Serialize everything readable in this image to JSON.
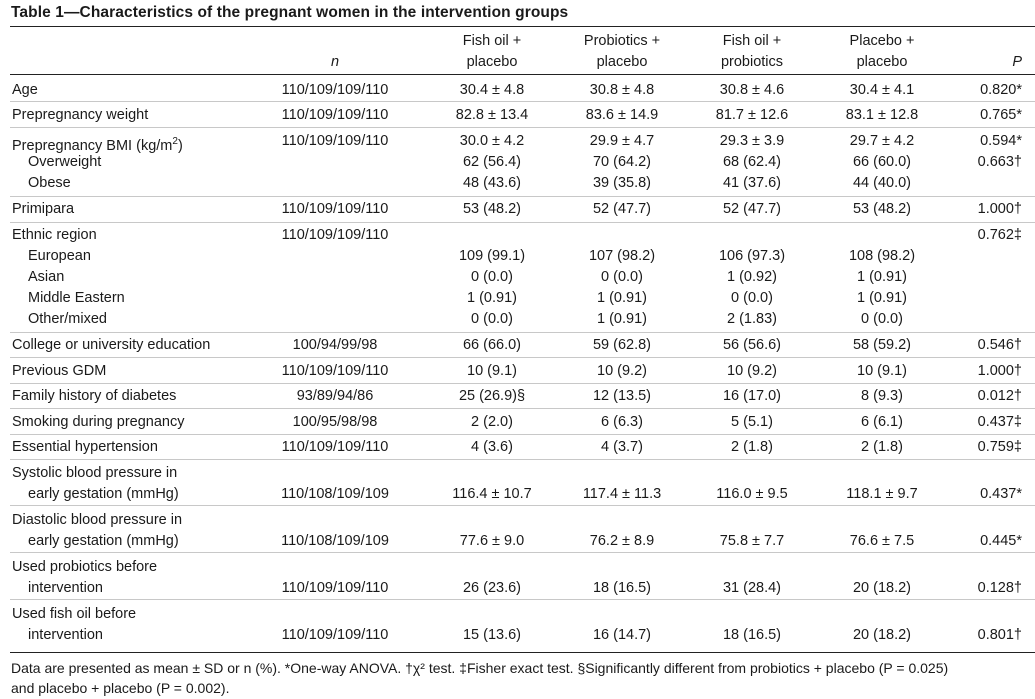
{
  "table": {
    "title": "Table 1—Characteristics of the pregnant women in the intervention groups",
    "headers": {
      "n": "n",
      "fish_oil_line1": "Fish oil +",
      "fish_oil_line2": "placebo",
      "probiotics_line1": "Probiotics +",
      "probiotics_line2": "placebo",
      "fish_probiotics_line1": "Fish oil +",
      "fish_probiotics_line2": "probiotics",
      "placebo_line1": "Placebo +",
      "placebo_line2": "placebo",
      "p": "P"
    },
    "rows": [
      {
        "label": "Age",
        "n": "110/109/109/110",
        "fo": "30.4 ± 4.8",
        "pr": "30.8 ± 4.8",
        "fp": "30.8 ± 4.6",
        "pl": "30.4 ± 4.1",
        "p": "0.820*"
      },
      {
        "label": "Prepregnancy weight",
        "n": "110/109/109/110",
        "fo": "82.8 ± 13.4",
        "pr": "83.6 ± 14.9",
        "fp": "81.7 ± 12.6",
        "pl": "83.1 ± 12.8",
        "p": "0.765*"
      },
      {
        "label": "Prepregnancy BMI (kg/m",
        "label_sup": "2",
        "label_end": ")",
        "n": "110/109/109/110",
        "fo": "30.0 ± 4.2",
        "pr": "29.9 ± 4.7",
        "fp": "29.3 ± 3.9",
        "pl": "29.7 ± 4.2",
        "p": "0.594*"
      },
      {
        "label": "Overweight",
        "n": "",
        "fo": "62 (56.4)",
        "pr": "70 (64.2)",
        "fp": "68 (62.4)",
        "pl": "66 (60.0)",
        "p": "0.663†"
      },
      {
        "label": "Obese",
        "n": "",
        "fo": "48 (43.6)",
        "pr": "39 (35.8)",
        "fp": "41 (37.6)",
        "pl": "44 (40.0)",
        "p": ""
      },
      {
        "label": "Primipara",
        "n": "110/109/109/110",
        "fo": "53 (48.2)",
        "pr": "52 (47.7)",
        "fp": "52 (47.7)",
        "pl": "53 (48.2)",
        "p": "1.000†"
      },
      {
        "label": "Ethnic region",
        "n": "110/109/109/110",
        "fo": "",
        "pr": "",
        "fp": "",
        "pl": "",
        "p": "0.762‡"
      },
      {
        "label": "European",
        "n": "",
        "fo": "109 (99.1)",
        "pr": "107 (98.2)",
        "fp": "106 (97.3)",
        "pl": "108 (98.2)",
        "p": ""
      },
      {
        "label": "Asian",
        "n": "",
        "fo": "0 (0.0)",
        "pr": "0 (0.0)",
        "fp": "1 (0.92)",
        "pl": "1 (0.91)",
        "p": ""
      },
      {
        "label": "Middle Eastern",
        "n": "",
        "fo": "1 (0.91)",
        "pr": "1 (0.91)",
        "fp": "0 (0.0)",
        "pl": "1 (0.91)",
        "p": ""
      },
      {
        "label": "Other/mixed",
        "n": "",
        "fo": "0 (0.0)",
        "pr": "1 (0.91)",
        "fp": "2 (1.83)",
        "pl": "0 (0.0)",
        "p": ""
      },
      {
        "label": "College or university education",
        "n": "100/94/99/98",
        "fo": "66 (66.0)",
        "pr": "59 (62.8)",
        "fp": "56 (56.6)",
        "pl": "58 (59.2)",
        "p": "0.546†"
      },
      {
        "label": "Previous GDM",
        "n": "110/109/109/110",
        "fo": "10 (9.1)",
        "pr": "10 (9.2)",
        "fp": "10 (9.2)",
        "pl": "10 (9.1)",
        "p": "1.000†"
      },
      {
        "label": "Family history of diabetes",
        "n": "93/89/94/86",
        "fo": "25 (26.9)§",
        "pr": "12 (13.5)",
        "fp": "16 (17.0)",
        "pl": "8 (9.3)",
        "p": "0.012†"
      },
      {
        "label": "Smoking during pregnancy",
        "n": "100/95/98/98",
        "fo": "2 (2.0)",
        "pr": "6 (6.3)",
        "fp": "5 (5.1)",
        "pl": "6 (6.1)",
        "p": "0.437‡"
      },
      {
        "label": "Essential hypertension",
        "n": "110/109/109/110",
        "fo": "4 (3.6)",
        "pr": "4 (3.7)",
        "fp": "2 (1.8)",
        "pl": "2 (1.8)",
        "p": "0.759‡"
      },
      {
        "label": "Systolic blood pressure in",
        "n": "",
        "fo": "",
        "pr": "",
        "fp": "",
        "pl": "",
        "p": ""
      },
      {
        "label": "early gestation (mmHg)",
        "n": "110/108/109/109",
        "fo": "116.4 ± 10.7",
        "pr": "117.4 ± 11.3",
        "fp": "116.0 ± 9.5",
        "pl": "118.1 ± 9.7",
        "p": "0.437*"
      },
      {
        "label": "Diastolic blood pressure in",
        "n": "",
        "fo": "",
        "pr": "",
        "fp": "",
        "pl": "",
        "p": ""
      },
      {
        "label": "early gestation (mmHg)",
        "n": "110/108/109/109",
        "fo": "77.6 ± 9.0",
        "pr": "76.2 ± 8.9",
        "fp": "75.8 ± 7.7",
        "pl": "76.6 ± 7.5",
        "p": "0.445*"
      },
      {
        "label": "Used probiotics before",
        "n": "",
        "fo": "",
        "pr": "",
        "fp": "",
        "pl": "",
        "p": ""
      },
      {
        "label": "intervention",
        "n": "110/109/109/110",
        "fo": "26 (23.6)",
        "pr": "18 (16.5)",
        "fp": "31 (28.4)",
        "pl": "20 (18.2)",
        "p": "0.128†"
      },
      {
        "label": "Used fish oil before",
        "n": "",
        "fo": "",
        "pr": "",
        "fp": "",
        "pl": "",
        "p": ""
      },
      {
        "label": "intervention",
        "n": "110/109/109/110",
        "fo": "15 (13.6)",
        "pr": "16 (14.7)",
        "fp": "18 (16.5)",
        "pl": "20 (18.2)",
        "p": "0.801†"
      }
    ],
    "footnote_line1": "Data are presented as mean ± SD or n (%). *One-way ANOVA. †χ² test. ‡Fisher exact test. §Significantly different from probiotics + placebo (P = 0.025)",
    "footnote_line2": "and placebo + placebo (P = 0.002)."
  }
}
